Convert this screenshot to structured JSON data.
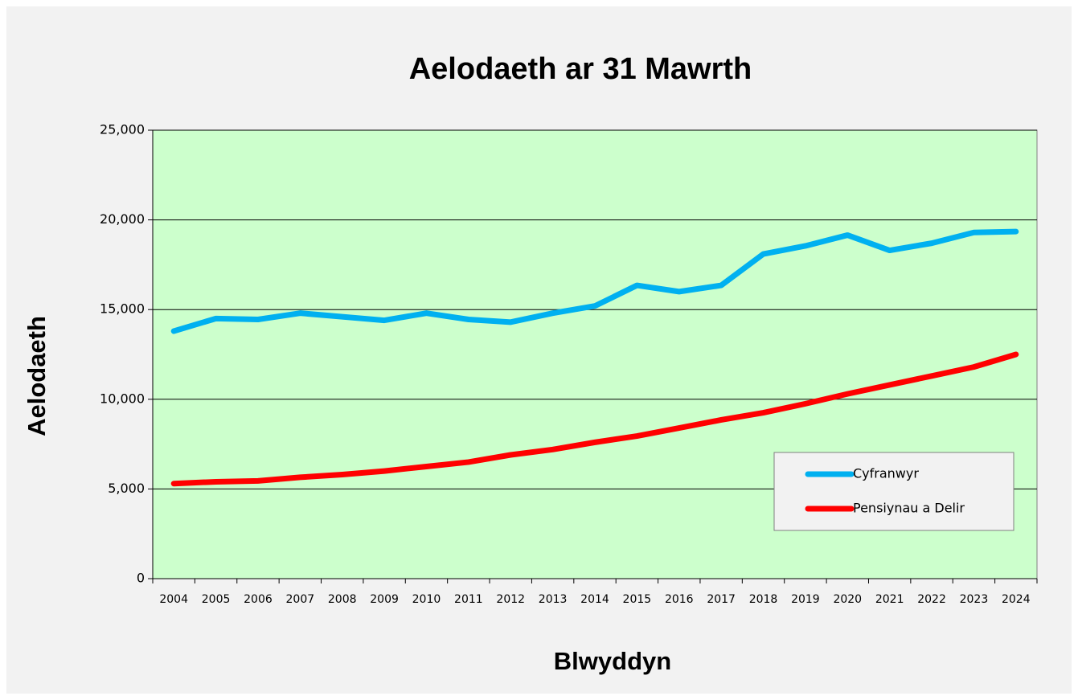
{
  "chart_data": {
    "type": "line",
    "title": "Aelodaeth ar 31 Mawrth",
    "x_label": "Blwyddyn",
    "y_label": "Aelodaeth",
    "categories": [
      "2004",
      "2005",
      "2006",
      "2007",
      "2008",
      "2009",
      "2010",
      "2011",
      "2012",
      "2013",
      "2014",
      "2015",
      "2016",
      "2017",
      "2018",
      "2019",
      "2020",
      "2021",
      "2022",
      "2023",
      "2024"
    ],
    "series": [
      {
        "name": "Cyfranwyr",
        "color": "#00b0f0",
        "values": [
          13800,
          14500,
          14450,
          14800,
          14600,
          14400,
          14800,
          14450,
          14300,
          14800,
          15200,
          16350,
          16000,
          16350,
          18100,
          18550,
          19150,
          18300,
          18700,
          19300,
          19350
        ]
      },
      {
        "name": "Pensiynau a Delir",
        "color": "#ff0000",
        "values": [
          5300,
          5400,
          5450,
          5650,
          5800,
          6000,
          6250,
          6500,
          6900,
          7200,
          7600,
          7950,
          8400,
          8850,
          9250,
          9750,
          10300,
          10800,
          11300,
          11800,
          12500
        ]
      }
    ],
    "ylim": [
      0,
      25000
    ],
    "yticks": [
      0,
      {
        "value": 5000,
        "label": "5,000"
      },
      {
        "value": 10000,
        "label": "10,000"
      },
      {
        "value": 15000,
        "label": "15,000"
      },
      {
        "value": 20000,
        "label": "20,000"
      },
      {
        "value": 25000,
        "label": "25,000"
      }
    ],
    "grid": true,
    "legend": "lower right",
    "plot_background": "#ccffcc"
  }
}
